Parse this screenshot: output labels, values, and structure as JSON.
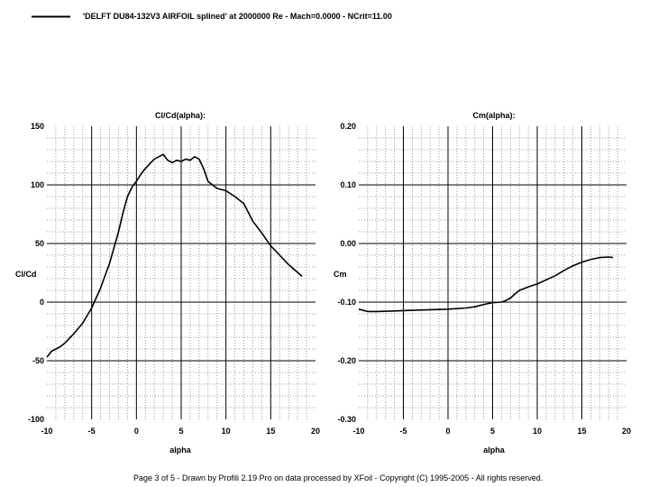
{
  "legend": {
    "text": "'DELFT DU84-132V3 AIRFOIL splined' at 2000000 Re - Mach=0.0000 - NCrit=11.00",
    "line_color": "#000000"
  },
  "footer": {
    "text": "Page 3 of 5  -  Drawn by Profili 2.19 Pro on data processed by  XFoil - Copyright (C) 1995-2005 - All rights reserved."
  },
  "colors": {
    "curve": "#000000",
    "major_grid": "#000000",
    "minor_grid": "#808080",
    "background": "#ffffff"
  },
  "chart_data": [
    {
      "type": "line",
      "title": "Cl/Cd(alpha):",
      "xlabel": "alpha",
      "ylabel": "Cl/Cd",
      "xlim": [
        -10,
        20
      ],
      "ylim": [
        -100,
        150
      ],
      "x_ticks": [
        -10,
        -5,
        0,
        5,
        10,
        15,
        20
      ],
      "x_tick_labels": [
        "-10",
        "-5",
        "0",
        "5",
        "10",
        "15",
        "20"
      ],
      "y_ticks": [
        -100,
        -50,
        0,
        50,
        100,
        150
      ],
      "y_tick_labels": [
        "-100",
        "-50",
        "0",
        "50",
        "100",
        "150"
      ],
      "grid": true,
      "series": [
        {
          "x": [
            -10,
            -9.5,
            -9,
            -8.5,
            -8,
            -7,
            -6,
            -5,
            -4,
            -3,
            -2,
            -1.5,
            -1,
            -0.5,
            0,
            0.5,
            1,
            1.5,
            2,
            2.5,
            3,
            3.5,
            4,
            4.5,
            5,
            5.5,
            6,
            6.5,
            7,
            7.5,
            8,
            9,
            10,
            11,
            12,
            13,
            14,
            15,
            16,
            17,
            18.5
          ],
          "y": [
            -47,
            -42,
            -40,
            -38,
            -35,
            -27,
            -18,
            -5,
            12,
            33,
            60,
            76,
            90,
            98,
            103,
            109,
            114,
            118,
            122,
            124,
            126,
            121,
            119,
            121,
            120,
            122,
            121,
            124,
            122,
            114,
            103,
            97,
            95,
            90,
            84,
            69,
            59,
            48,
            40,
            32,
            22
          ]
        }
      ]
    },
    {
      "type": "line",
      "title": "Cm(alpha):",
      "xlabel": "alpha",
      "ylabel": "Cm",
      "xlim": [
        -10,
        20
      ],
      "ylim": [
        -0.3,
        0.2
      ],
      "x_ticks": [
        -10,
        -5,
        0,
        5,
        10,
        15,
        20
      ],
      "x_tick_labels": [
        "-10",
        "-5",
        "0",
        "5",
        "10",
        "15",
        "20"
      ],
      "y_ticks": [
        -0.3,
        -0.2,
        -0.1,
        0.0,
        0.1,
        0.2
      ],
      "y_tick_labels": [
        "-0.30",
        "-0.20",
        "-0.10",
        "0.00",
        "0.10",
        "0.20"
      ],
      "grid": true,
      "series": [
        {
          "x": [
            -10,
            -9,
            -8,
            -6,
            -4,
            -2,
            0,
            2,
            3,
            4,
            5,
            6,
            6.5,
            7,
            7.5,
            8,
            9,
            10,
            11,
            12,
            13,
            14,
            15,
            16,
            17,
            18,
            18.5
          ],
          "y": [
            -0.112,
            -0.116,
            -0.116,
            -0.115,
            -0.114,
            -0.113,
            -0.112,
            -0.11,
            -0.108,
            -0.104,
            -0.101,
            -0.1,
            -0.097,
            -0.093,
            -0.086,
            -0.08,
            -0.074,
            -0.069,
            -0.062,
            -0.055,
            -0.046,
            -0.038,
            -0.032,
            -0.027,
            -0.024,
            -0.023,
            -0.024
          ]
        }
      ]
    }
  ]
}
